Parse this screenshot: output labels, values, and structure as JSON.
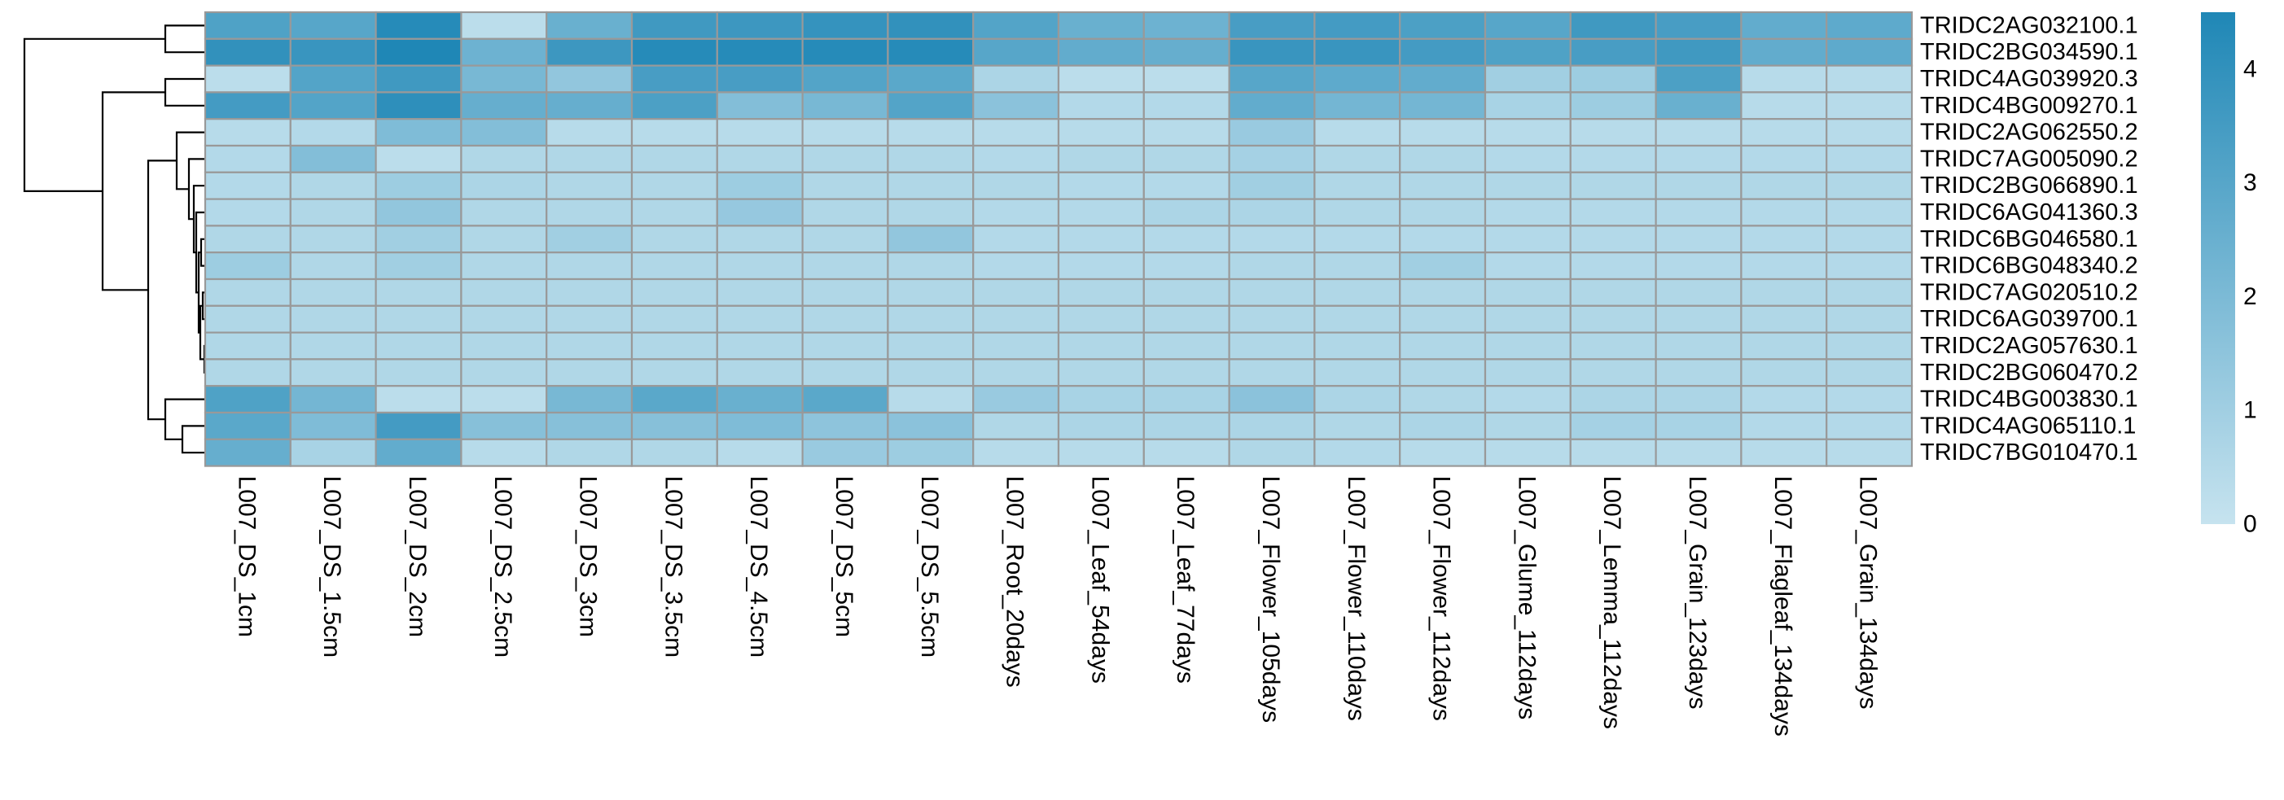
{
  "chart_data": {
    "type": "heatmap",
    "title": "",
    "xlabel": "",
    "ylabel": "",
    "rows": [
      "TRIDC2AG032100.1",
      "TRIDC2BG034590.1",
      "TRIDC4AG039920.3",
      "TRIDC4BG009270.1",
      "TRIDC2AG062550.2",
      "TRIDC7AG005090.2",
      "TRIDC2BG066890.1",
      "TRIDC6AG041360.3",
      "TRIDC6BG046580.1",
      "TRIDC6BG048340.2",
      "TRIDC7AG020510.2",
      "TRIDC6AG039700.1",
      "TRIDC2AG057630.1",
      "TRIDC2BG060470.2",
      "TRIDC4BG003830.1",
      "TRIDC4AG065110.1",
      "TRIDC7BG010470.1"
    ],
    "columns": [
      "L007_DS_1cm",
      "L007_DS_1.5cm",
      "L007_DS_2cm",
      "L007_DS_2.5cm",
      "L007_DS_3cm",
      "L007_DS_3.5cm",
      "L007_DS_4.5cm",
      "L007_DS_5cm",
      "L007_DS_5.5cm",
      "L007_Root_20days",
      "L007_Leaf_54days",
      "L007_Leaf_77days",
      "L007_Flower_105days",
      "L007_Flower_110days",
      "L007_Flower_112days",
      "L007_Glume_112days",
      "L007_Lemma_112days",
      "L007_Grain_123days",
      "L007_Flagleaf_134days",
      "L007_Grain_134days"
    ],
    "values": [
      [
        3.2,
        3.0,
        4.3,
        0.3,
        2.5,
        3.6,
        3.7,
        3.9,
        4.0,
        3.1,
        2.5,
        2.4,
        3.4,
        3.5,
        3.3,
        3.0,
        3.6,
        3.4,
        2.7,
        2.8
      ],
      [
        4.0,
        3.8,
        4.5,
        2.4,
        3.7,
        4.3,
        4.3,
        4.3,
        4.3,
        3.0,
        2.7,
        2.6,
        3.8,
        3.8,
        3.5,
        3.2,
        3.4,
        3.6,
        2.7,
        2.8
      ],
      [
        0.3,
        3.1,
        3.6,
        2.1,
        1.4,
        3.4,
        3.4,
        3.1,
        2.9,
        0.7,
        0.3,
        0.3,
        3.0,
        2.8,
        2.7,
        1.0,
        1.1,
        3.3,
        0.4,
        0.4
      ],
      [
        3.5,
        3.1,
        4.1,
        2.6,
        2.6,
        3.3,
        1.8,
        2.1,
        3.1,
        1.6,
        0.5,
        0.5,
        2.7,
        2.2,
        2.2,
        0.8,
        1.1,
        2.5,
        0.4,
        0.4
      ],
      [
        0.4,
        0.5,
        1.9,
        1.8,
        0.4,
        0.4,
        0.4,
        0.4,
        0.4,
        0.4,
        0.4,
        0.4,
        1.2,
        0.4,
        0.4,
        0.4,
        0.4,
        0.4,
        0.4,
        0.4
      ],
      [
        0.5,
        1.8,
        0.3,
        0.6,
        0.6,
        0.6,
        0.6,
        0.6,
        0.6,
        0.5,
        0.6,
        0.6,
        0.9,
        0.6,
        0.6,
        0.5,
        0.5,
        0.5,
        0.5,
        0.5
      ],
      [
        0.5,
        0.6,
        1.1,
        0.7,
        0.6,
        0.6,
        1.1,
        0.6,
        0.6,
        0.6,
        0.5,
        0.5,
        1.0,
        0.6,
        0.6,
        0.6,
        0.6,
        0.6,
        0.6,
        0.6
      ],
      [
        0.5,
        0.6,
        1.4,
        0.6,
        0.6,
        0.6,
        1.3,
        0.6,
        0.6,
        0.5,
        0.5,
        0.7,
        0.7,
        0.6,
        0.6,
        0.5,
        0.5,
        0.5,
        0.5,
        0.5
      ],
      [
        0.6,
        0.6,
        1.0,
        0.6,
        1.0,
        0.6,
        0.6,
        0.6,
        1.4,
        0.5,
        0.5,
        0.5,
        0.5,
        0.5,
        0.5,
        0.5,
        0.5,
        0.5,
        0.5,
        0.5
      ],
      [
        1.1,
        0.6,
        1.0,
        0.6,
        0.6,
        0.6,
        0.6,
        0.6,
        0.6,
        0.5,
        0.5,
        0.5,
        0.6,
        0.6,
        1.0,
        0.5,
        0.5,
        0.5,
        0.5,
        0.5
      ],
      [
        0.6,
        0.6,
        0.6,
        0.6,
        0.6,
        0.6,
        0.6,
        0.6,
        0.6,
        0.6,
        0.6,
        0.6,
        0.6,
        0.6,
        0.6,
        0.6,
        0.6,
        0.6,
        0.6,
        0.6
      ],
      [
        0.6,
        0.6,
        0.6,
        0.6,
        0.6,
        0.6,
        0.6,
        0.6,
        0.6,
        0.6,
        0.6,
        0.6,
        0.6,
        0.6,
        0.6,
        0.6,
        0.6,
        0.6,
        0.6,
        0.6
      ],
      [
        0.6,
        0.6,
        0.6,
        0.6,
        0.6,
        0.6,
        0.6,
        0.6,
        0.6,
        0.6,
        0.6,
        0.6,
        0.6,
        0.6,
        0.6,
        0.6,
        0.6,
        0.6,
        0.6,
        0.6
      ],
      [
        0.6,
        0.6,
        0.6,
        0.6,
        0.6,
        0.6,
        0.6,
        0.6,
        0.6,
        0.6,
        0.6,
        0.6,
        0.6,
        0.6,
        0.6,
        0.6,
        0.6,
        0.6,
        0.6,
        0.6
      ],
      [
        3.2,
        2.2,
        0.3,
        0.3,
        2.1,
        2.9,
        2.5,
        2.9,
        0.4,
        1.2,
        0.8,
        0.8,
        1.6,
        0.7,
        0.6,
        0.5,
        0.7,
        0.7,
        0.5,
        0.5
      ],
      [
        2.9,
        1.9,
        3.5,
        1.7,
        1.7,
        1.7,
        1.9,
        1.5,
        1.6,
        0.6,
        0.7,
        0.7,
        0.7,
        0.6,
        0.7,
        0.6,
        0.9,
        0.8,
        0.5,
        0.5
      ],
      [
        2.6,
        0.8,
        2.7,
        0.4,
        0.6,
        0.6,
        0.4,
        1.2,
        1.1,
        0.4,
        0.4,
        0.4,
        0.6,
        0.5,
        0.4,
        0.4,
        0.4,
        0.4,
        0.4,
        0.4
      ]
    ],
    "color_scale": {
      "min": 0,
      "max": 4.5,
      "low_color": "#c6e3ef",
      "high_color": "#1f87b6",
      "ticks": [
        0,
        1,
        2,
        3,
        4
      ]
    },
    "cell_border_color": "#999999",
    "row_dendrogram": true,
    "column_dendrogram": false,
    "legend_placement": "right"
  }
}
